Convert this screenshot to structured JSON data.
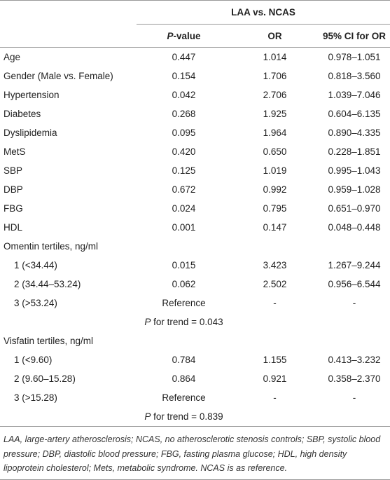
{
  "header": {
    "group": "LAA vs. NCAS",
    "columns": [
      "P-value",
      "OR",
      "95% CI for OR"
    ]
  },
  "rows": [
    {
      "label": "Age",
      "values": [
        "0.447",
        "1.014",
        "0.978–1.051"
      ]
    },
    {
      "label": "Gender (Male vs. Female)",
      "values": [
        "0.154",
        "1.706",
        "0.818–3.560"
      ]
    },
    {
      "label": "Hypertension",
      "values": [
        "0.042",
        "2.706",
        "1.039–7.046"
      ]
    },
    {
      "label": "Diabetes",
      "values": [
        "0.268",
        "1.925",
        "0.604–6.135"
      ]
    },
    {
      "label": "Dyslipidemia",
      "values": [
        "0.095",
        "1.964",
        "0.890–4.335"
      ]
    },
    {
      "label": "MetS",
      "values": [
        "0.420",
        "0.650",
        "0.228–1.851"
      ]
    },
    {
      "label": "SBP",
      "values": [
        "0.125",
        "1.019",
        "0.995–1.043"
      ]
    },
    {
      "label": "DBP",
      "values": [
        "0.672",
        "0.992",
        "0.959–1.028"
      ]
    },
    {
      "label": "FBG",
      "values": [
        "0.024",
        "0.795",
        "0.651–0.970"
      ]
    },
    {
      "label": "HDL",
      "values": [
        "0.001",
        "0.147",
        "0.048–0.448"
      ]
    },
    {
      "section": "Omentin tertiles, ng/ml"
    },
    {
      "sub": "1 (<34.44)",
      "values": [
        "0.015",
        "3.423",
        "1.267–9.244"
      ]
    },
    {
      "sub": "2 (34.44–53.24)",
      "values": [
        "0.062",
        "2.502",
        "0.956–6.544"
      ]
    },
    {
      "sub": "3 (>53.24)",
      "values": [
        "Reference",
        "-",
        "-"
      ]
    },
    {
      "trend": "P for trend = 0.043"
    },
    {
      "section": "Visfatin tertiles, ng/ml"
    },
    {
      "sub": "1 (<9.60)",
      "values": [
        "0.784",
        "1.155",
        "0.413–3.232"
      ]
    },
    {
      "sub": "2 (9.60–15.28)",
      "values": [
        "0.864",
        "0.921",
        "0.358–2.370"
      ]
    },
    {
      "sub": "3 (>15.28)",
      "values": [
        "Reference",
        "-",
        "-"
      ]
    },
    {
      "trend": "P for trend = 0.839"
    }
  ],
  "footnote": "LAA, large-artery atherosclerosis; NCAS, no atherosclerotic stenosis controls; SBP, systolic blood pressure; DBP, diastolic blood pressure; FBG, fasting plasma glucose; HDL, high density lipoprotein cholesterol; Mets, metabolic syndrome. NCAS is as reference."
}
